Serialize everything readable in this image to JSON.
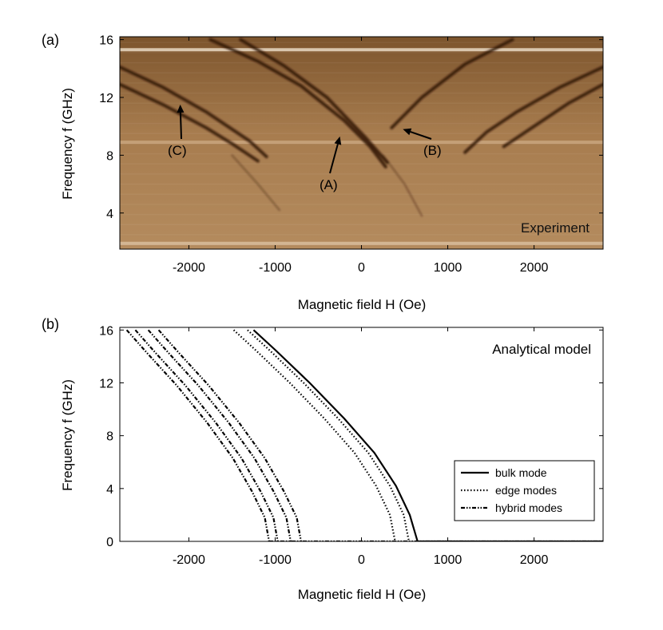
{
  "chart_data": [
    {
      "type": "heatmap",
      "panel_label": "(a)",
      "xlabel": "Magnetic field H (Oe)",
      "ylabel": "Frequency f (GHz)",
      "xlim": [
        -2800,
        2800
      ],
      "ylim": [
        1.5,
        16.2
      ],
      "x_ticks": [
        -2000,
        -1000,
        0,
        1000,
        2000
      ],
      "y_ticks": [
        4,
        8,
        12,
        16
      ],
      "tick_labels": {
        "x": [
          "-2000",
          "-1000",
          "0",
          "1000",
          "2000"
        ],
        "y": [
          "4",
          "8",
          "12",
          "16"
        ]
      },
      "inset_label": "Experiment",
      "colormap": [
        "#8a5f32",
        "#b58a5d",
        "#e6cfb2",
        "#3a1c08"
      ],
      "grid": false,
      "annotations": [
        {
          "label": "(A)",
          "arrow_to": [
            -250,
            9.3
          ]
        },
        {
          "label": "(B)",
          "arrow_to": [
            480,
            9.8
          ]
        },
        {
          "label": "(C)",
          "arrow_to": [
            -2100,
            11.5
          ]
        }
      ],
      "series": [
        {
          "x": [
            -2800,
            -2300,
            -1800,
            -1300,
            -1100
          ],
          "y": [
            14.1,
            12.7,
            11.0,
            9.0,
            7.9
          ]
        },
        {
          "x": [
            -2800,
            -2300,
            -1800,
            -1500,
            -1200
          ],
          "y": [
            12.9,
            11.5,
            9.9,
            8.8,
            7.6
          ]
        },
        {
          "x": [
            -1750,
            -1200,
            -700,
            -200,
            100,
            280
          ],
          "y": [
            16.0,
            14.5,
            12.8,
            10.4,
            8.6,
            7.2
          ]
        },
        {
          "x": [
            -1400,
            -900,
            -400,
            50,
            300
          ],
          "y": [
            16.0,
            14.2,
            12.0,
            9.2,
            7.5
          ]
        },
        {
          "x": [
            1750,
            1200,
            700,
            350
          ],
          "y": [
            16.0,
            14.3,
            12.0,
            9.9
          ]
        },
        {
          "x": [
            2800,
            2300,
            1800,
            1450,
            1200
          ],
          "y": [
            14.1,
            12.7,
            11.0,
            9.6,
            8.2
          ]
        },
        {
          "x": [
            2800,
            2400,
            2000,
            1650
          ],
          "y": [
            12.9,
            11.6,
            10.0,
            8.6
          ]
        },
        {
          "x": [
            -1500,
            -1200,
            -950
          ],
          "y": [
            8.0,
            6.0,
            4.2
          ]
        },
        {
          "x": [
            250,
            500,
            700
          ],
          "y": [
            8.0,
            6.0,
            3.8
          ]
        }
      ],
      "horizontal_bands": [
        {
          "y": 15.3,
          "color": "#eadbc4"
        },
        {
          "y": 8.9,
          "color": "#c9a47c"
        },
        {
          "y": 1.9,
          "color": "#d8bd9c"
        }
      ]
    },
    {
      "type": "line",
      "panel_label": "(b)",
      "xlabel": "Magnetic field H (Oe)",
      "ylabel": "Frequency f (GHz)",
      "xlim": [
        -2800,
        2800
      ],
      "ylim": [
        0,
        16.2
      ],
      "x_ticks": [
        -2000,
        -1000,
        0,
        1000,
        2000
      ],
      "y_ticks": [
        0,
        4,
        8,
        12,
        16
      ],
      "tick_labels": {
        "x": [
          "-2000",
          "-1000",
          "0",
          "1000",
          "2000"
        ],
        "y": [
          "0",
          "4",
          "8",
          "12",
          "16"
        ]
      },
      "inset_label": "Analytical model",
      "grid": false,
      "legend": {
        "position": "bottom-right",
        "entries": [
          {
            "label": "bulk mode",
            "style": "solid"
          },
          {
            "label": "edge modes",
            "style": "dotted"
          },
          {
            "label": "hybrid modes",
            "style": "dashdot"
          }
        ]
      },
      "series": [
        {
          "style": "solid",
          "x": [
            -1250,
            -1000,
            -600,
            -200,
            150,
            400,
            560,
            650,
            2800
          ],
          "y": [
            16,
            14.5,
            12.0,
            9.3,
            6.7,
            4.2,
            2.0,
            0,
            0
          ]
        },
        {
          "style": "dotted",
          "x": [
            -1320,
            -1070,
            -670,
            -270,
            80,
            330,
            490,
            550
          ],
          "y": [
            16,
            14.5,
            12.0,
            9.3,
            6.7,
            4.2,
            2.0,
            0
          ]
        },
        {
          "style": "dotted",
          "x": [
            -1480,
            -1230,
            -830,
            -430,
            -80,
            170,
            330,
            390
          ],
          "y": [
            16,
            14.5,
            12.0,
            9.3,
            6.7,
            4.2,
            2.0,
            0
          ]
        },
        {
          "style": "dashdot",
          "x": [
            -2350,
            -2120,
            -1770,
            -1420,
            -1120,
            -900,
            -750,
            -700
          ],
          "y": [
            16,
            14.3,
            11.8,
            9.0,
            6.3,
            3.8,
            1.8,
            0
          ]
        },
        {
          "style": "dashdot",
          "x": [
            -2470,
            -2240,
            -1890,
            -1540,
            -1240,
            -1020,
            -870,
            -820
          ],
          "y": [
            16,
            14.3,
            11.8,
            9.0,
            6.3,
            3.8,
            1.8,
            0
          ]
        },
        {
          "style": "dashdot",
          "x": [
            -2620,
            -2390,
            -2040,
            -1690,
            -1390,
            -1170,
            -1020,
            -970
          ],
          "y": [
            16,
            14.3,
            11.8,
            9.0,
            6.3,
            3.8,
            1.8,
            0
          ]
        },
        {
          "style": "dashdot",
          "x": [
            -2720,
            -2490,
            -2140,
            -1790,
            -1490,
            -1270,
            -1120,
            -1070
          ],
          "y": [
            16,
            14.3,
            11.8,
            9.0,
            6.3,
            3.8,
            1.8,
            0
          ]
        },
        {
          "style": "dashdot",
          "x": [
            -1070,
            2800
          ],
          "y": [
            0,
            0
          ]
        }
      ]
    }
  ]
}
